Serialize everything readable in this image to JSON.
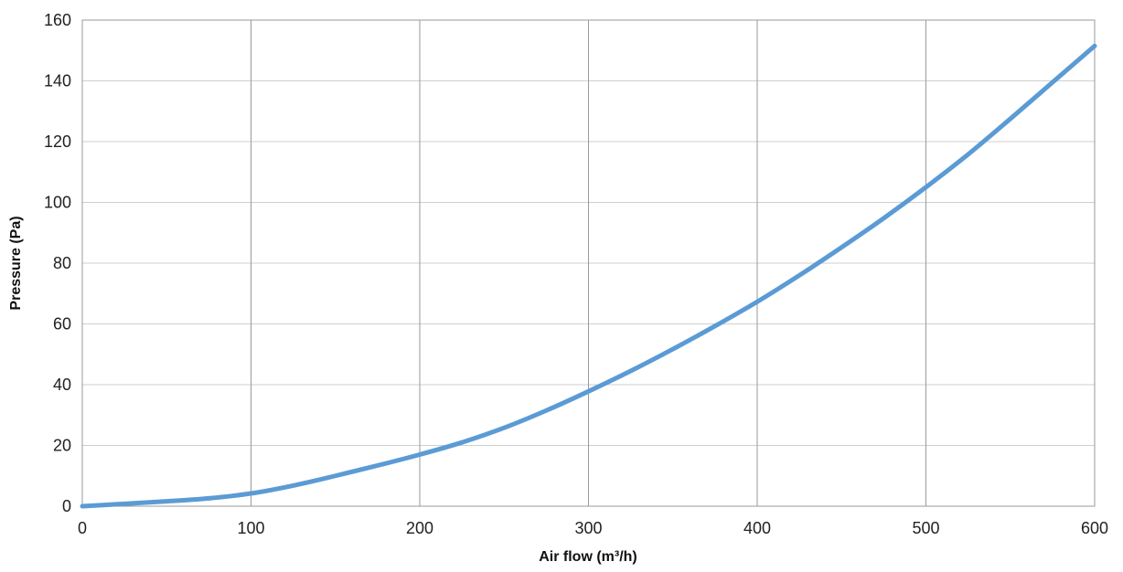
{
  "chart_data": {
    "type": "line",
    "title": "",
    "xlabel": "Air flow (m³/h)",
    "ylabel": "Pressure (Pa)",
    "xlim": [
      0,
      600
    ],
    "ylim": [
      0,
      160
    ],
    "x_ticks": [
      0,
      100,
      200,
      300,
      400,
      500,
      600
    ],
    "y_ticks": [
      0,
      20,
      40,
      60,
      80,
      100,
      120,
      140,
      160
    ],
    "x_tick_labels": [
      "0",
      "100",
      "200",
      "300",
      "400",
      "500",
      "600"
    ],
    "y_tick_labels": [
      "0",
      "20",
      "40",
      "60",
      "80",
      "100",
      "120",
      "140",
      "160"
    ],
    "grid": true,
    "legend": "none",
    "series": [
      {
        "color": "#5B9BD5",
        "x": [
          0,
          25,
          50,
          75,
          100,
          125,
          150,
          175,
          200,
          225,
          250,
          275,
          300,
          325,
          350,
          375,
          400,
          425,
          450,
          475,
          500,
          525,
          550,
          575,
          600
        ],
        "y": [
          0,
          0.8,
          1.6,
          2.6,
          4.2,
          6.8,
          10.0,
          13.4,
          17.0,
          21.0,
          25.8,
          31.5,
          37.8,
          44.5,
          51.7,
          59.3,
          67.3,
          76.0,
          85.2,
          94.8,
          105.0,
          115.8,
          127.5,
          139.5,
          151.5
        ]
      }
    ]
  }
}
